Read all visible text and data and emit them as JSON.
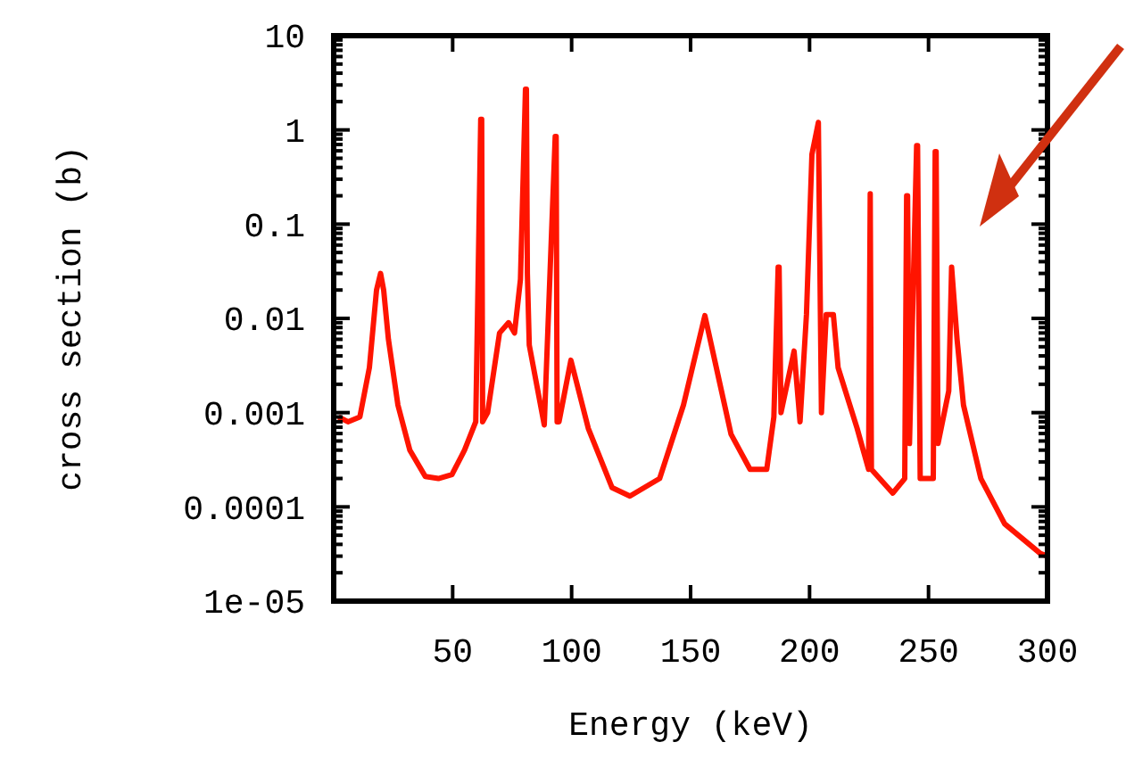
{
  "chart_data": {
    "type": "line",
    "xlabel": "Energy (keV)",
    "ylabel": "cross section (b)",
    "log": "y",
    "grid": false,
    "line_style": "solid",
    "xlim": [
      0,
      300
    ],
    "xticks": [
      50,
      100,
      150,
      200,
      250,
      300
    ],
    "ylim": [
      1e-05,
      10
    ],
    "yticks": [
      10,
      1,
      0.1,
      0.01,
      0.001,
      0.0001,
      {
        "value": 1e-05,
        "label": "1e-05"
      }
    ],
    "series": [
      {
        "color": "#ff1400",
        "x": [
          2,
          6,
          11,
          15,
          18,
          19.7,
          21,
          23,
          27,
          32,
          38.5,
          44,
          49.7,
          55,
          59.7,
          61.8,
          62.2,
          62.6,
          64.7,
          69.7,
          73.5,
          76,
          78.5,
          80.6,
          81,
          81.4,
          82.2,
          88.5,
          93.1,
          93.5,
          93.9,
          94.7,
          99.7,
          107,
          117,
          124.5,
          137,
          147,
          156,
          162,
          167,
          175,
          182,
          185,
          186.8,
          187.2,
          188,
          193.5,
          196,
          198.7,
          201,
          203.7,
          205,
          207,
          210,
          212,
          220,
          224.8,
          225.5,
          226,
          235,
          240,
          240.8,
          241.2,
          242,
          245,
          245.4,
          246.5,
          252,
          252.8,
          253.2,
          254,
          258.5,
          259.7,
          262,
          264.7,
          272,
          282,
          297,
          300
        ],
        "values": [
          0.0009,
          0.0008,
          0.0009,
          0.003,
          0.02,
          0.03,
          0.02,
          0.006,
          0.0012,
          0.0004,
          0.00021,
          0.0002,
          0.00022,
          0.0004,
          0.0008,
          1.3,
          1.3,
          0.0008,
          0.001,
          0.007,
          0.009,
          0.007,
          0.026,
          2.7,
          2.7,
          0.03,
          0.0052,
          0.00074,
          0.85,
          0.85,
          0.0008,
          0.0008,
          0.0036,
          0.00068,
          0.00016,
          0.00013,
          0.0002,
          0.0012,
          0.0107,
          0.0022,
          0.00059,
          0.00025,
          0.00025,
          0.0009,
          0.035,
          0.035,
          0.001,
          0.0045,
          0.0008,
          0.011,
          0.55,
          1.2,
          0.001,
          0.011,
          0.011,
          0.003,
          0.00068,
          0.00025,
          0.21,
          0.00025,
          0.00014,
          0.0002,
          0.2,
          0.2,
          0.00047,
          0.68,
          0.68,
          0.0002,
          0.0002,
          0.59,
          0.59,
          0.00047,
          0.0017,
          0.035,
          0.006,
          0.0012,
          0.0002,
          6.6e-05,
          3.2e-05,
          3e-05
        ]
      }
    ]
  }
}
